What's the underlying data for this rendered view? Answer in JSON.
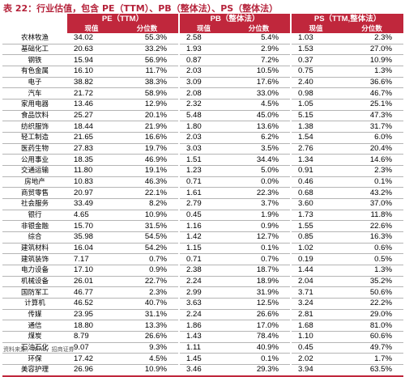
{
  "title": "表 22：行业估值，包含 PE（TTM）、PB（整体法）、PS（整体法）",
  "groups": [
    "PE（TTM）",
    "PB（整体法）",
    "PS（TTM,整体法）"
  ],
  "subheaders": [
    "现值",
    "分位数",
    "现值",
    "分位数",
    "现值",
    "分位数"
  ],
  "colors": {
    "header_bg": "#c0273c",
    "header_text": "#ffffff",
    "title": "#b5223a"
  },
  "rows": [
    {
      "industry": "农林牧渔",
      "pe": "34.02",
      "pe_pct": "55.3%",
      "pb": "2.58",
      "pb_pct": "5.4%",
      "ps": "1.03",
      "ps_pct": "2.3%"
    },
    {
      "industry": "基础化工",
      "pe": "20.63",
      "pe_pct": "33.2%",
      "pb": "1.93",
      "pb_pct": "2.9%",
      "ps": "1.53",
      "ps_pct": "27.0%"
    },
    {
      "industry": "钢铁",
      "pe": "15.94",
      "pe_pct": "56.9%",
      "pb": "0.87",
      "pb_pct": "7.2%",
      "ps": "0.37",
      "ps_pct": "10.9%"
    },
    {
      "industry": "有色金属",
      "pe": "16.10",
      "pe_pct": "11.7%",
      "pb": "2.03",
      "pb_pct": "10.5%",
      "ps": "0.75",
      "ps_pct": "1.3%"
    },
    {
      "industry": "电子",
      "pe": "38.82",
      "pe_pct": "38.3%",
      "pb": "3.09",
      "pb_pct": "17.6%",
      "ps": "2.40",
      "ps_pct": "36.6%"
    },
    {
      "industry": "汽车",
      "pe": "21.72",
      "pe_pct": "58.9%",
      "pb": "2.08",
      "pb_pct": "33.0%",
      "ps": "0.98",
      "ps_pct": "46.7%"
    },
    {
      "industry": "家用电器",
      "pe": "13.46",
      "pe_pct": "12.9%",
      "pb": "2.32",
      "pb_pct": "4.5%",
      "ps": "1.05",
      "ps_pct": "25.1%"
    },
    {
      "industry": "食品饮料",
      "pe": "25.27",
      "pe_pct": "20.1%",
      "pb": "5.48",
      "pb_pct": "45.0%",
      "ps": "5.15",
      "ps_pct": "47.3%"
    },
    {
      "industry": "纺织服饰",
      "pe": "18.44",
      "pe_pct": "21.9%",
      "pb": "1.80",
      "pb_pct": "13.6%",
      "ps": "1.38",
      "ps_pct": "31.7%"
    },
    {
      "industry": "轻工制造",
      "pe": "21.65",
      "pe_pct": "16.6%",
      "pb": "2.03",
      "pb_pct": "6.2%",
      "ps": "1.54",
      "ps_pct": "6.0%"
    },
    {
      "industry": "医药生物",
      "pe": "27.83",
      "pe_pct": "19.7%",
      "pb": "3.03",
      "pb_pct": "3.5%",
      "ps": "2.76",
      "ps_pct": "20.4%"
    },
    {
      "industry": "公用事业",
      "pe": "18.35",
      "pe_pct": "46.9%",
      "pb": "1.51",
      "pb_pct": "34.4%",
      "ps": "1.34",
      "ps_pct": "14.6%"
    },
    {
      "industry": "交通运输",
      "pe": "11.80",
      "pe_pct": "19.1%",
      "pb": "1.23",
      "pb_pct": "5.0%",
      "ps": "0.91",
      "ps_pct": "2.3%"
    },
    {
      "industry": "房地产",
      "pe": "10.83",
      "pe_pct": "46.3%",
      "pb": "0.71",
      "pb_pct": "0.0%",
      "ps": "0.46",
      "ps_pct": "0.1%"
    },
    {
      "industry": "商贸零售",
      "pe": "20.97",
      "pe_pct": "22.1%",
      "pb": "1.61",
      "pb_pct": "22.3%",
      "ps": "0.68",
      "ps_pct": "43.2%"
    },
    {
      "industry": "社会服务",
      "pe": "33.49",
      "pe_pct": "8.2%",
      "pb": "2.79",
      "pb_pct": "3.7%",
      "ps": "3.60",
      "ps_pct": "37.0%"
    },
    {
      "industry": "银行",
      "pe": "4.65",
      "pe_pct": "10.9%",
      "pb": "0.45",
      "pb_pct": "1.9%",
      "ps": "1.73",
      "ps_pct": "11.8%"
    },
    {
      "industry": "非银金融",
      "pe": "15.70",
      "pe_pct": "31.5%",
      "pb": "1.16",
      "pb_pct": "0.9%",
      "ps": "1.55",
      "ps_pct": "22.6%"
    },
    {
      "industry": "综合",
      "pe": "35.98",
      "pe_pct": "54.5%",
      "pb": "1.42",
      "pb_pct": "12.7%",
      "ps": "0.85",
      "ps_pct": "16.3%"
    },
    {
      "industry": "建筑材料",
      "pe": "16.04",
      "pe_pct": "54.2%",
      "pb": "1.15",
      "pb_pct": "0.1%",
      "ps": "1.02",
      "ps_pct": "0.6%"
    },
    {
      "industry": "建筑装饰",
      "pe": "7.17",
      "pe_pct": "0.7%",
      "pb": "0.71",
      "pb_pct": "0.7%",
      "ps": "0.19",
      "ps_pct": "0.5%"
    },
    {
      "industry": "电力设备",
      "pe": "17.10",
      "pe_pct": "0.9%",
      "pb": "2.38",
      "pb_pct": "18.7%",
      "ps": "1.44",
      "ps_pct": "1.3%"
    },
    {
      "industry": "机械设备",
      "pe": "26.01",
      "pe_pct": "22.7%",
      "pb": "2.24",
      "pb_pct": "18.9%",
      "ps": "2.04",
      "ps_pct": "35.2%"
    },
    {
      "industry": "国防军工",
      "pe": "46.77",
      "pe_pct": "2.3%",
      "pb": "2.99",
      "pb_pct": "31.9%",
      "ps": "3.71",
      "ps_pct": "50.6%"
    },
    {
      "industry": "计算机",
      "pe": "46.52",
      "pe_pct": "40.7%",
      "pb": "3.63",
      "pb_pct": "12.5%",
      "ps": "3.24",
      "ps_pct": "22.2%"
    },
    {
      "industry": "传媒",
      "pe": "23.95",
      "pe_pct": "31.1%",
      "pb": "2.24",
      "pb_pct": "26.6%",
      "ps": "2.81",
      "ps_pct": "29.0%"
    },
    {
      "industry": "通信",
      "pe": "18.80",
      "pe_pct": "13.3%",
      "pb": "1.86",
      "pb_pct": "17.0%",
      "ps": "1.68",
      "ps_pct": "81.0%"
    },
    {
      "industry": "煤炭",
      "pe": "8.79",
      "pe_pct": "26.6%",
      "pb": "1.43",
      "pb_pct": "78.4%",
      "ps": "1.10",
      "ps_pct": "60.6%"
    },
    {
      "industry": "石油石化",
      "pe": "9.07",
      "pe_pct": "9.3%",
      "pb": "1.11",
      "pb_pct": "40.9%",
      "ps": "0.45",
      "ps_pct": "49.7%"
    },
    {
      "industry": "环保",
      "pe": "17.42",
      "pe_pct": "4.5%",
      "pb": "1.45",
      "pb_pct": "0.1%",
      "ps": "2.02",
      "ps_pct": "1.7%"
    },
    {
      "industry": "美容护理",
      "pe": "26.96",
      "pe_pct": "10.9%",
      "pb": "3.46",
      "pb_pct": "29.3%",
      "ps": "3.94",
      "ps_pct": "63.5%"
    }
  ],
  "source": "资料来源：Wind，招商证券"
}
